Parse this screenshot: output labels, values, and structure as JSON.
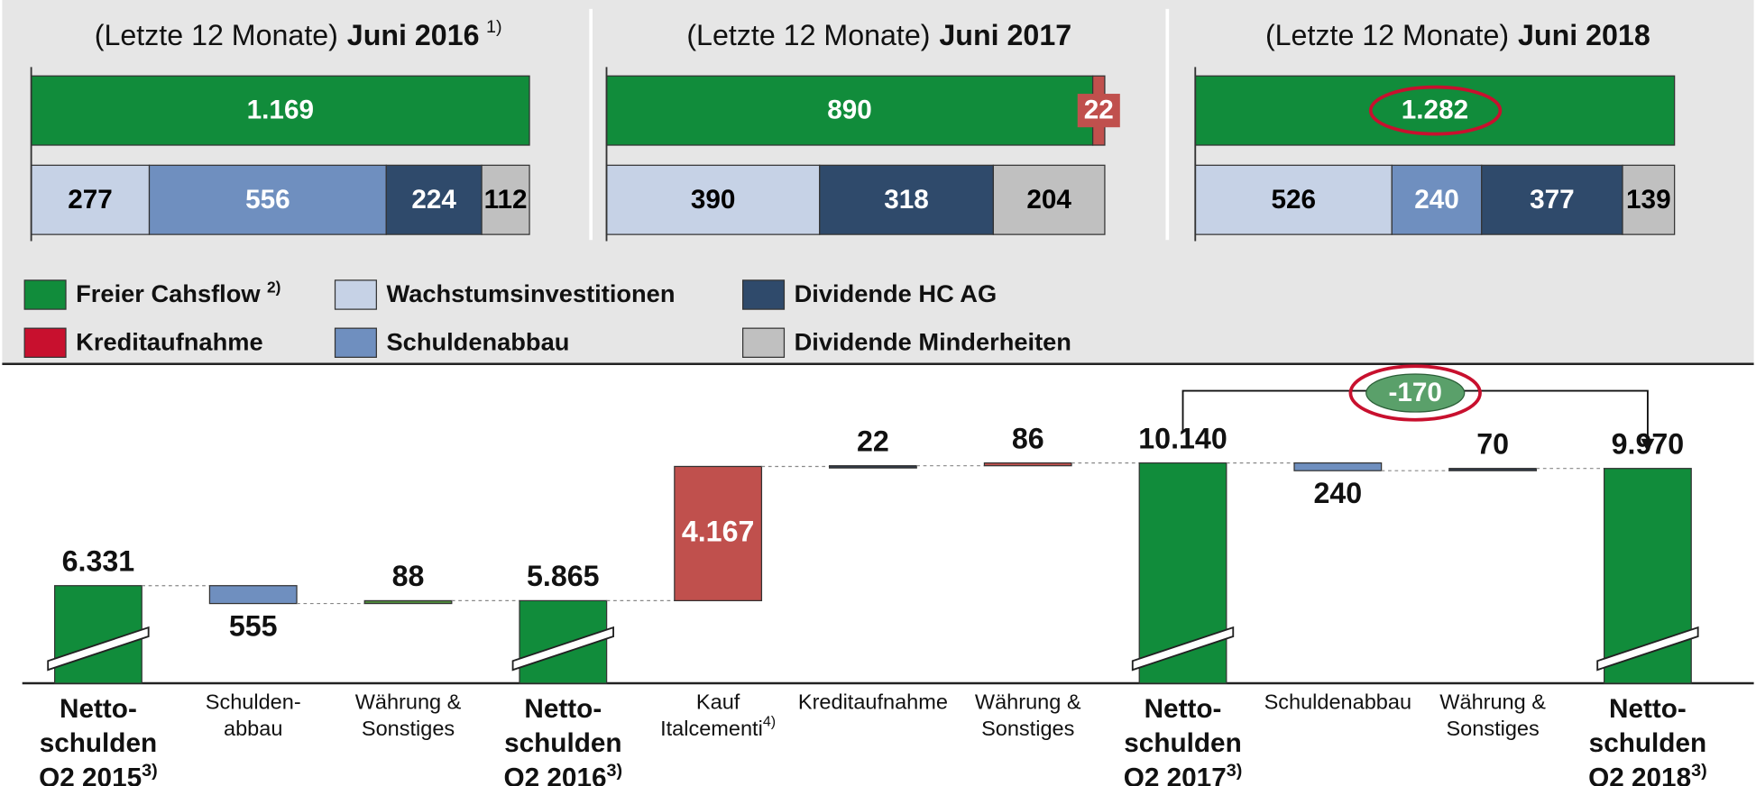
{
  "legend": {
    "series": [
      {
        "name": "Freier Cahsflow",
        "note": "2)",
        "color": "#118c3b",
        "text_color": "#ffffff"
      },
      {
        "name": "Kreditaufnahme",
        "color": "#c8102e",
        "bar_color": "#c0504d",
        "text_color": "#ffffff"
      },
      {
        "name": "Wachstumsinvestitionen",
        "color": "#c6d2e6",
        "text_color": "#000000"
      },
      {
        "name": "Schuldenabbau",
        "color": "#6f8fbf",
        "text_color": "#ffffff"
      },
      {
        "name": "Dividende HC AG",
        "color": "#2f4a6b",
        "text_color": "#ffffff"
      },
      {
        "name": "Dividende Minderheiten",
        "color": "#c0c0c0",
        "text_color": "#000000"
      }
    ]
  },
  "chart_data": [
    {
      "type": "stacked-bar",
      "title_prefix": "(Letzte 12 Monate)",
      "title": "Juni 2016",
      "title_note": "1)",
      "xlim": [
        0,
        1169
      ],
      "rows": [
        [
          {
            "series": 0,
            "value": 1169,
            "label": "1.169"
          }
        ],
        [
          {
            "series": 2,
            "value": 277
          },
          {
            "series": 3,
            "value": 556
          },
          {
            "series": 4,
            "value": 224
          },
          {
            "series": 5,
            "value": 112
          }
        ]
      ]
    },
    {
      "type": "stacked-bar",
      "title_prefix": "(Letzte 12 Monate)",
      "title": "Juni 2017",
      "xlim": [
        0,
        912
      ],
      "rows": [
        [
          {
            "series": 0,
            "value": 890
          },
          {
            "series": 1,
            "value": 22
          }
        ],
        [
          {
            "series": 2,
            "value": 390
          },
          {
            "series": 4,
            "value": 318
          },
          {
            "series": 5,
            "value": 204
          }
        ]
      ]
    },
    {
      "type": "stacked-bar",
      "title_prefix": "(Letzte 12 Monate)",
      "title": "Juni 2018",
      "xlim": [
        0,
        1282
      ],
      "rows": [
        [
          {
            "series": 0,
            "value": 1282,
            "label": "1.282"
          }
        ],
        [
          {
            "series": 2,
            "value": 526
          },
          {
            "series": 3,
            "value": 240
          },
          {
            "series": 4,
            "value": 377
          },
          {
            "series": 5,
            "value": 139
          }
        ]
      ]
    },
    {
      "type": "waterfall",
      "ylim": [
        3300,
        12000
      ],
      "steps": [
        {
          "kind": "total",
          "value": 6331,
          "label": "6.331",
          "color": "#118c3b",
          "category": {
            "lines": [
              "Netto-",
              "schulden",
              "Q2 2015"
            ],
            "note": "3)",
            "bold": true
          }
        },
        {
          "kind": "decrease",
          "value": 555,
          "color": "#6f8fbf",
          "category": {
            "lines": [
              "Schulden-",
              "abbau"
            ]
          }
        },
        {
          "kind": "increase",
          "value": 88,
          "color": "#4f8a3c",
          "category": {
            "lines": [
              "Währung &",
              "Sonstiges"
            ]
          }
        },
        {
          "kind": "total",
          "value": 5865,
          "label": "5.865",
          "color": "#118c3b",
          "category": {
            "lines": [
              "Netto-",
              "schulden",
              "Q2 2016"
            ],
            "note": "3)",
            "bold": true
          }
        },
        {
          "kind": "increase",
          "value": 4167,
          "label": "4.167",
          "color": "#c0504d",
          "label_inside": true,
          "category": {
            "lines": [
              "Kauf",
              "Italcementi"
            ],
            "note": "4)"
          }
        },
        {
          "kind": "increase",
          "value": 22,
          "color": "#2f3a4a",
          "category": {
            "lines": [
              "Kreditaufnahme"
            ]
          }
        },
        {
          "kind": "increase",
          "value": 86,
          "color": "#c0504d",
          "category": {
            "lines": [
              "Währung &",
              "Sonstiges"
            ]
          }
        },
        {
          "kind": "total",
          "value": 10140,
          "label": "10.140",
          "color": "#118c3b",
          "category": {
            "lines": [
              "Netto-",
              "schulden",
              "Q2 2017"
            ],
            "note": "3)",
            "bold": true
          }
        },
        {
          "kind": "decrease",
          "value": 240,
          "color": "#6f8fbf",
          "category": {
            "lines": [
              "Schuldenabbau"
            ]
          }
        },
        {
          "kind": "increase",
          "value": 70,
          "color": "#2f3a4a",
          "category": {
            "lines": [
              "Währung &",
              "Sonstiges"
            ]
          }
        },
        {
          "kind": "total",
          "value": 9970,
          "label": "9.970",
          "color": "#118c3b",
          "category": {
            "lines": [
              "Netto-",
              "schulden",
              "Q2 2018"
            ],
            "note": "3)",
            "bold": true
          }
        }
      ],
      "annotation": {
        "text": "-170",
        "from": 7,
        "to": 10
      }
    }
  ]
}
